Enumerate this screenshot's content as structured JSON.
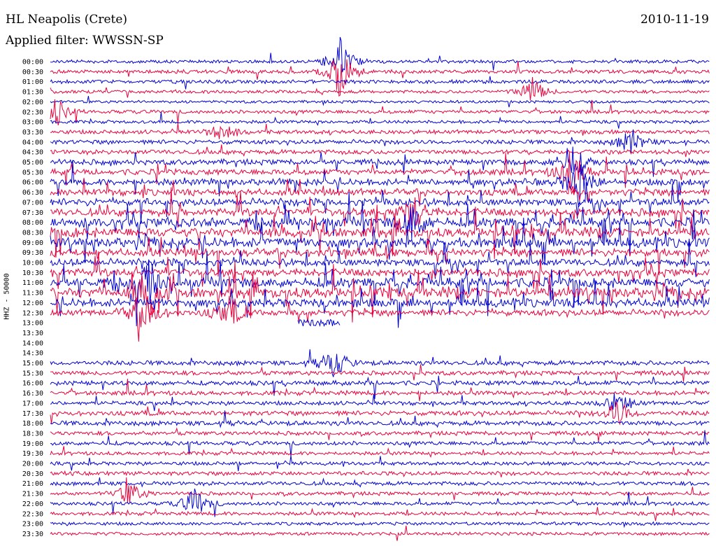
{
  "header": {
    "station": "HL Neapolis (Crete)",
    "date": "2010-11-19",
    "filter": "Applied filter: WWSSN-SP"
  },
  "chart_data": {
    "type": "line",
    "title": "HL Neapolis (Crete)",
    "ylabel": "HHZ - 50000",
    "row_labels": [
      "00:00",
      "00:30",
      "01:00",
      "01:30",
      "02:00",
      "02:30",
      "03:00",
      "03:30",
      "04:00",
      "04:30",
      "05:00",
      "05:30",
      "06:00",
      "06:30",
      "07:00",
      "07:30",
      "08:00",
      "08:30",
      "09:00",
      "09:30",
      "10:00",
      "10:30",
      "11:00",
      "11:30",
      "12:00",
      "12:30",
      "13:00",
      "13:30",
      "14:00",
      "14:30",
      "15:00",
      "15:30",
      "16:00",
      "16:30",
      "17:00",
      "17:30",
      "18:00",
      "18:30",
      "19:00",
      "19:30",
      "20:00",
      "20:30",
      "21:00",
      "21:30",
      "22:00",
      "22:30",
      "23:00",
      "23:30"
    ],
    "trace_colors": [
      "#0000d0",
      "#e8003c"
    ],
    "activity_level": [
      0.4,
      0.5,
      0.5,
      0.4,
      0.3,
      0.5,
      0.4,
      0.6,
      0.7,
      0.8,
      1.0,
      1.1,
      1.3,
      1.3,
      1.5,
      1.6,
      2.0,
      2.1,
      2.2,
      1.6,
      1.5,
      1.6,
      2.1,
      2.4,
      1.8,
      1.2,
      0,
      0,
      0,
      0,
      0.8,
      0.7,
      0.8,
      0.7,
      0.6,
      0.8,
      0.8,
      0.6,
      0.6,
      0.5,
      0.5,
      0.6,
      0.6,
      0.5,
      0.5,
      0.5,
      0.4,
      0.4
    ],
    "events": [
      {
        "row": 0,
        "pos": 0.44,
        "amp": 3.0
      },
      {
        "row": 1,
        "pos": 0.44,
        "amp": 3.5
      },
      {
        "row": 3,
        "pos": 0.73,
        "amp": 1.8
      },
      {
        "row": 5,
        "pos": 0.01,
        "amp": 1.6
      },
      {
        "row": 7,
        "pos": 0.26,
        "amp": 1.2
      },
      {
        "row": 8,
        "pos": 0.88,
        "amp": 1.8
      },
      {
        "row": 10,
        "pos": 0.79,
        "amp": 2.5
      },
      {
        "row": 11,
        "pos": 0.79,
        "amp": 3.0
      },
      {
        "row": 12,
        "pos": 0.8,
        "amp": 3.0
      },
      {
        "row": 15,
        "pos": 0.55,
        "amp": 2.5
      },
      {
        "row": 16,
        "pos": 0.55,
        "amp": 2.5
      },
      {
        "row": 22,
        "pos": 0.15,
        "amp": 2.5
      },
      {
        "row": 23,
        "pos": 0.15,
        "amp": 3.5
      },
      {
        "row": 25,
        "pos": 0.14,
        "amp": 3.0
      },
      {
        "row": 25,
        "pos": 0.27,
        "amp": 2.0
      },
      {
        "row": 30,
        "pos": 0.43,
        "amp": 2.0
      },
      {
        "row": 34,
        "pos": 0.86,
        "amp": 1.6
      },
      {
        "row": 35,
        "pos": 0.86,
        "amp": 1.6
      },
      {
        "row": 43,
        "pos": 0.12,
        "amp": 1.6
      },
      {
        "row": 44,
        "pos": 0.22,
        "amp": 2.0
      }
    ],
    "gap_events": [
      {
        "row": 26,
        "start": 0.375,
        "end": 0.44
      }
    ]
  }
}
